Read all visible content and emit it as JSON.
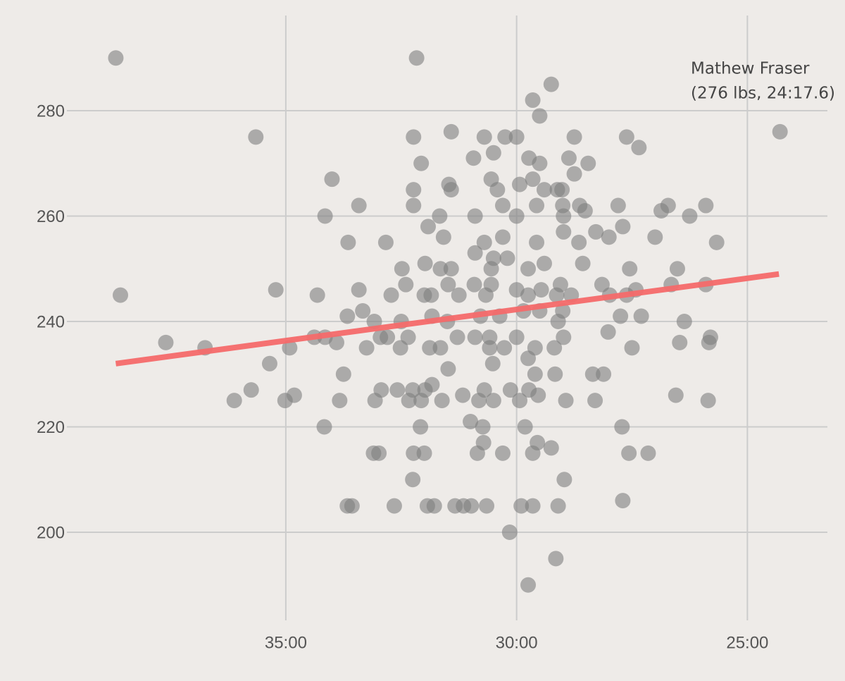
{
  "chart_data": {
    "type": "scatter",
    "annotation": [
      "Mathew Fraser",
      "(276 lbs, 24:17.6)"
    ],
    "xlim": [
      2380,
      1396
    ],
    "ylim": [
      180.6,
      301
    ],
    "xticks": [
      {
        "value": 2100,
        "label": "35:00"
      },
      {
        "value": 1800,
        "label": "30:00"
      },
      {
        "value": 1500,
        "label": "25:00"
      }
    ],
    "yticks": [
      200,
      220,
      240,
      260,
      280
    ],
    "grid": true,
    "points": {
      "color": "#7f7f7f",
      "x": [
        2321,
        1930,
        1755,
        1779,
        1770,
        1457.6,
        2139,
        1934,
        1885,
        1842,
        1815,
        1800,
        1725,
        1657,
        1641,
        1856,
        1830,
        1784,
        1732,
        1707,
        2040,
        1924,
        1770,
        1833,
        1779,
        1888,
        1796,
        1934,
        1885,
        1825,
        1764,
        1747,
        1741,
        1725,
        2005,
        1934,
        1818,
        1774,
        1740,
        1718,
        1668,
        1603,
        1554,
        2049,
        1900,
        1854,
        1800,
        1739,
        1711,
        1612,
        1575,
        1915,
        1662,
        2019,
        1970,
        1895,
        1842,
        1818,
        1774,
        1719,
        1680,
        1620,
        1540,
        1854,
        1830,
        1812,
        1739,
        1697,
        1949,
        1919,
        1899,
        1885,
        1833,
        1785,
        1764,
        1714,
        1653,
        1591,
        2113,
        2059,
        2005,
        1963,
        1944,
        1920,
        1911,
        1889,
        1875,
        1855,
        1840,
        1833,
        1800,
        1785,
        1768,
        1748,
        1743,
        1729,
        1689,
        1679,
        1657,
        1645,
        1599,
        1554,
        2020,
        2000,
        1985,
        1950,
        1910,
        1890,
        1847,
        1822,
        1791,
        1770,
        1746,
        1740,
        1681,
        1665,
        1638,
        1582,
        2063,
        2049,
        2034,
        1995,
        1977,
        1968,
        1951,
        1941,
        1913,
        1899,
        1877,
        1854,
        1835,
        1835,
        1816,
        1800,
        1776,
        1751,
        1739,
        1650,
        1588,
        1550,
        1548,
        2205,
        2256,
        2095,
        2121,
        1831,
        1785,
        1889,
        1776,
        1750,
        1701,
        1687,
        2025,
        2145,
        1976,
        1955,
        1935,
        1919,
        1842,
        1808,
        1784,
        2167,
        2101,
        2030,
        1984,
        1940,
        1924,
        1897,
        1849,
        1830,
        1796,
        1736,
        1698,
        1551,
        1593,
        2089,
        1910,
        1870,
        1772,
        2050,
        1925,
        1844,
        1789,
        1663,
        1860,
        1843,
        1773,
        1986,
        1979,
        1934,
        1920,
        1851,
        1818,
        1779,
        1755,
        1654,
        1629,
        1935,
        1738,
        1662,
        2020,
        2014,
        1959,
        1916,
        1907,
        1880,
        1869,
        1859,
        1839,
        1794,
        1779,
        1746,
        1809,
        1749,
        1785,
        2315
      ],
      "values": [
        290,
        290,
        285,
        282,
        279,
        276,
        275,
        275,
        276,
        275,
        275,
        275,
        275,
        275,
        273,
        271,
        272,
        271,
        271,
        270,
        267,
        270,
        270,
        267,
        267,
        266,
        266,
        265,
        265,
        265,
        265,
        265,
        265,
        268,
        262,
        262,
        262,
        262,
        262,
        262,
        262,
        262,
        262,
        260,
        260,
        260,
        260,
        260,
        261,
        261,
        260,
        258,
        258,
        255,
        255,
        256,
        255,
        256,
        255,
        255,
        256,
        256,
        255,
        253,
        252,
        252,
        257,
        257,
        250,
        251,
        250,
        250,
        250,
        250,
        251,
        251,
        250,
        250,
        246,
        245,
        246,
        245,
        247,
        245,
        245,
        247,
        245,
        247,
        245,
        247,
        246,
        245,
        246,
        245,
        247,
        245,
        247,
        245,
        245,
        246,
        247,
        247,
        241,
        242,
        240,
        240,
        241,
        240,
        241,
        241,
        242,
        242,
        240,
        242,
        238,
        241,
        241,
        240,
        237,
        237,
        236,
        235,
        237,
        237,
        235,
        237,
        235,
        235,
        237,
        237,
        237,
        235,
        235,
        237,
        235,
        235,
        237,
        235,
        236,
        236,
        237,
        235,
        236,
        235,
        232,
        232,
        233,
        231,
        230,
        230,
        230,
        230,
        230,
        227,
        227,
        227,
        227,
        227,
        227,
        227,
        227,
        225,
        225,
        225,
        225,
        225,
        225,
        225,
        225,
        225,
        225,
        225,
        225,
        225,
        226,
        226,
        228,
        226,
        226,
        220,
        220,
        220,
        220,
        220,
        221,
        217,
        217,
        215,
        215,
        215,
        215,
        215,
        215,
        215,
        216,
        215,
        215,
        210,
        210,
        206,
        205,
        205,
        205,
        205,
        205,
        205,
        205,
        205,
        205,
        205,
        205,
        205,
        200,
        195,
        190,
        245
      ]
    },
    "fit": {
      "color": "#f46a6a",
      "x": [
        2321,
        1459
      ],
      "values": [
        232,
        249
      ]
    }
  }
}
